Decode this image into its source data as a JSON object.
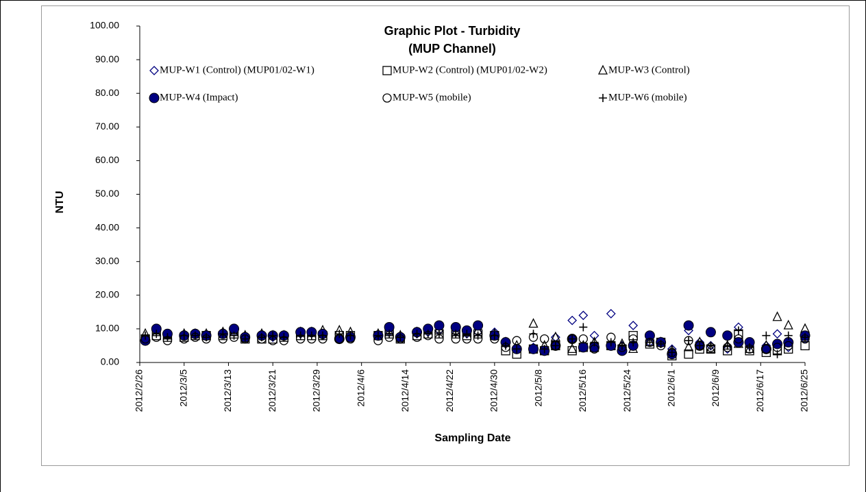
{
  "chart_data": {
    "type": "scatter",
    "title": [
      "Graphic Plot - Turbidity",
      "(MUP Channel)"
    ],
    "xlabel": "Sampling Date",
    "ylabel": "NTU",
    "x": [
      "2012/2/27",
      "2012/2/29",
      "2012/3/2",
      "2012/3/5",
      "2012/3/7",
      "2012/3/9",
      "2012/3/12",
      "2012/3/14",
      "2012/3/16",
      "2012/3/19",
      "2012/3/21",
      "2012/3/23",
      "2012/3/26",
      "2012/3/28",
      "2012/3/30",
      "2012/4/2",
      "2012/4/4",
      "2012/4/9",
      "2012/4/11",
      "2012/4/13",
      "2012/4/16",
      "2012/4/18",
      "2012/4/20",
      "2012/4/23",
      "2012/4/25",
      "2012/4/27",
      "2012/4/30",
      "2012/5/2",
      "2012/5/4",
      "2012/5/7",
      "2012/5/9",
      "2012/5/11",
      "2012/5/14",
      "2012/5/16",
      "2012/5/18",
      "2012/5/21",
      "2012/5/23",
      "2012/5/25",
      "2012/5/28",
      "2012/5/30",
      "2012/6/1",
      "2012/6/4",
      "2012/6/6",
      "2012/6/8",
      "2012/6/11",
      "2012/6/13",
      "2012/6/15",
      "2012/6/18",
      "2012/6/20",
      "2012/6/22",
      "2012/6/25"
    ],
    "xlim": [
      "2012/2/26",
      "2012/6/25"
    ],
    "xticks": [
      "2012/2/26",
      "2012/3/5",
      "2012/3/13",
      "2012/3/21",
      "2012/3/29",
      "2012/4/6",
      "2012/4/14",
      "2012/4/22",
      "2012/4/30",
      "2012/5/8",
      "2012/5/16",
      "2012/5/24",
      "2012/6/1",
      "2012/6/9",
      "2012/6/17",
      "2012/6/25"
    ],
    "ylim": [
      0,
      100
    ],
    "yticks": [
      {
        "value": 0,
        "label": "0.00"
      },
      {
        "value": 10,
        "label": "10.00"
      },
      {
        "value": 20,
        "label": "20.00"
      },
      {
        "value": 30,
        "label": "30.00"
      },
      {
        "value": 40,
        "label": "40.00"
      },
      {
        "value": 50,
        "label": "50.00"
      },
      {
        "value": 60,
        "label": "60.00"
      },
      {
        "value": 70,
        "label": "70.00"
      },
      {
        "value": 80,
        "label": "80.00"
      },
      {
        "value": 90,
        "label": "90.00"
      },
      {
        "value": 100,
        "label": "100.00"
      }
    ],
    "grid": false,
    "series": [
      {
        "name": "MUP-W1 (Control) (MUP01/02-W1)",
        "marker": "diamond",
        "color": "#000080",
        "values": [
          7,
          9.5,
          8,
          8,
          8.5,
          8,
          8.5,
          9,
          7.5,
          8,
          7.5,
          8,
          8.5,
          9,
          8,
          7.5,
          8,
          8,
          9,
          7.5,
          8.5,
          9,
          9.5,
          9,
          8.5,
          9,
          9,
          5.5,
          4,
          4.5,
          3.5,
          7.5,
          12.5,
          14,
          8,
          14.5,
          5,
          11,
          6,
          6,
          4,
          9.5,
          6,
          5,
          4,
          10.5,
          5,
          5,
          8.5,
          4.5,
          7
        ]
      },
      {
        "name": "MUP-W2 (Control) (MUP01/02-W2)",
        "marker": "square",
        "color": "#000000",
        "values": [
          7,
          8,
          7.5,
          7.5,
          8,
          8,
          8,
          8.5,
          7,
          7,
          7,
          7.5,
          8,
          8,
          8,
          8,
          8,
          8,
          8.5,
          7,
          8,
          8.5,
          8.5,
          8.5,
          8,
          8.5,
          8,
          3.5,
          2.5,
          4,
          3.5,
          5,
          3.5,
          4.5,
          4.5,
          5,
          4,
          8,
          5.5,
          6,
          2,
          2.5,
          4,
          4,
          3.5,
          8.5,
          3.5,
          3,
          3.5,
          4,
          5
        ]
      },
      {
        "name": "MUP-W3 (Control)",
        "marker": "triangle",
        "color": "#000000",
        "values": [
          8.5,
          9,
          8,
          8.5,
          8.5,
          8.5,
          9,
          9,
          8,
          8.5,
          8,
          8,
          9,
          9,
          9.5,
          9.5,
          9,
          8.5,
          9,
          8,
          9,
          9.5,
          10,
          9,
          9,
          9.5,
          8.5,
          6,
          5,
          11.5,
          5,
          7.5,
          4,
          5,
          6,
          5,
          5.5,
          4,
          6,
          6,
          3.5,
          4.5,
          6,
          4,
          5,
          5.5,
          4,
          5,
          13.5,
          11,
          10
        ]
      },
      {
        "name": "MUP-W4 (Impact)",
        "marker": "filled-circle",
        "color": "#000080",
        "values": [
          6.5,
          10,
          8.5,
          8,
          8.5,
          8,
          8.5,
          10,
          7.5,
          8,
          8,
          8,
          9,
          9,
          8.5,
          7,
          7.5,
          8,
          10.5,
          7.5,
          9,
          10,
          11,
          10.5,
          9.5,
          11,
          8,
          6,
          4,
          4,
          3.5,
          5,
          7,
          4.5,
          4.5,
          5,
          3.5,
          5,
          8,
          6,
          2.5,
          11,
          5,
          9,
          8,
          6,
          6,
          4,
          5.5,
          6,
          8
        ]
      },
      {
        "name": "MUP-W5 (mobile)",
        "marker": "circle",
        "color": "#000000",
        "values": [
          7,
          7.5,
          6.5,
          7,
          7.5,
          7,
          7,
          7.5,
          7,
          7,
          6.5,
          6.5,
          7,
          7,
          7,
          7,
          7,
          6.5,
          7.5,
          7,
          7.5,
          8,
          7,
          7,
          7,
          7,
          7,
          4.5,
          6.5,
          7.5,
          7,
          5,
          7,
          7,
          4,
          7.5,
          4.5,
          7,
          6,
          5,
          3,
          6.5,
          5,
          4.5,
          4.5,
          7,
          4,
          4,
          4.5,
          5,
          7
        ]
      },
      {
        "name": "MUP-W6 (mobile)",
        "marker": "plus",
        "color": "#000000",
        "values": [
          8,
          8.5,
          7.5,
          8,
          8,
          7.5,
          8.5,
          8,
          7,
          7.5,
          8,
          7.5,
          8,
          8,
          8,
          8.5,
          8,
          8,
          8.5,
          7.5,
          8.5,
          8.5,
          8.5,
          8.5,
          8.5,
          8,
          8,
          5,
          4,
          8.5,
          4,
          5,
          7,
          10.5,
          6,
          6,
          5,
          6,
          6,
          5.5,
          3,
          6.5,
          5,
          5,
          5,
          9.5,
          4.5,
          8,
          2.5,
          8,
          7.5
        ]
      }
    ]
  }
}
